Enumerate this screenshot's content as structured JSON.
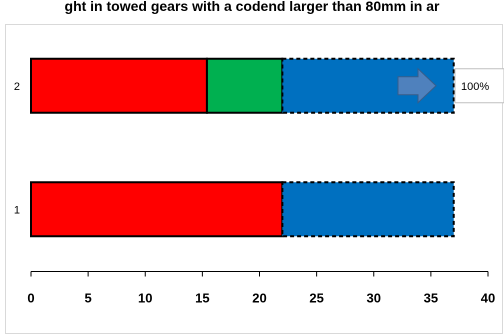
{
  "chart_data": {
    "type": "bar",
    "orientation": "horizontal",
    "stacked": true,
    "title": "ght in towed gears with a codend larger than 80mm in ar",
    "categories": [
      "1",
      "2"
    ],
    "series": [
      {
        "color": "#ff0000",
        "values": [
          22,
          15.4
        ],
        "border": "solid"
      },
      {
        "color": "#00b050",
        "values": [
          0,
          6.6
        ],
        "border": "solid"
      },
      {
        "color": "#0070c0",
        "values": [
          15,
          15
        ],
        "border": "dashed"
      }
    ],
    "xlim": [
      0,
      40
    ],
    "xticks": [
      0,
      5,
      10,
      15,
      20,
      25,
      30,
      35,
      40
    ],
    "callout": {
      "category": "2",
      "text": "100%",
      "arrow_color": "#4f81bd"
    },
    "grid": false,
    "legend": "none"
  }
}
